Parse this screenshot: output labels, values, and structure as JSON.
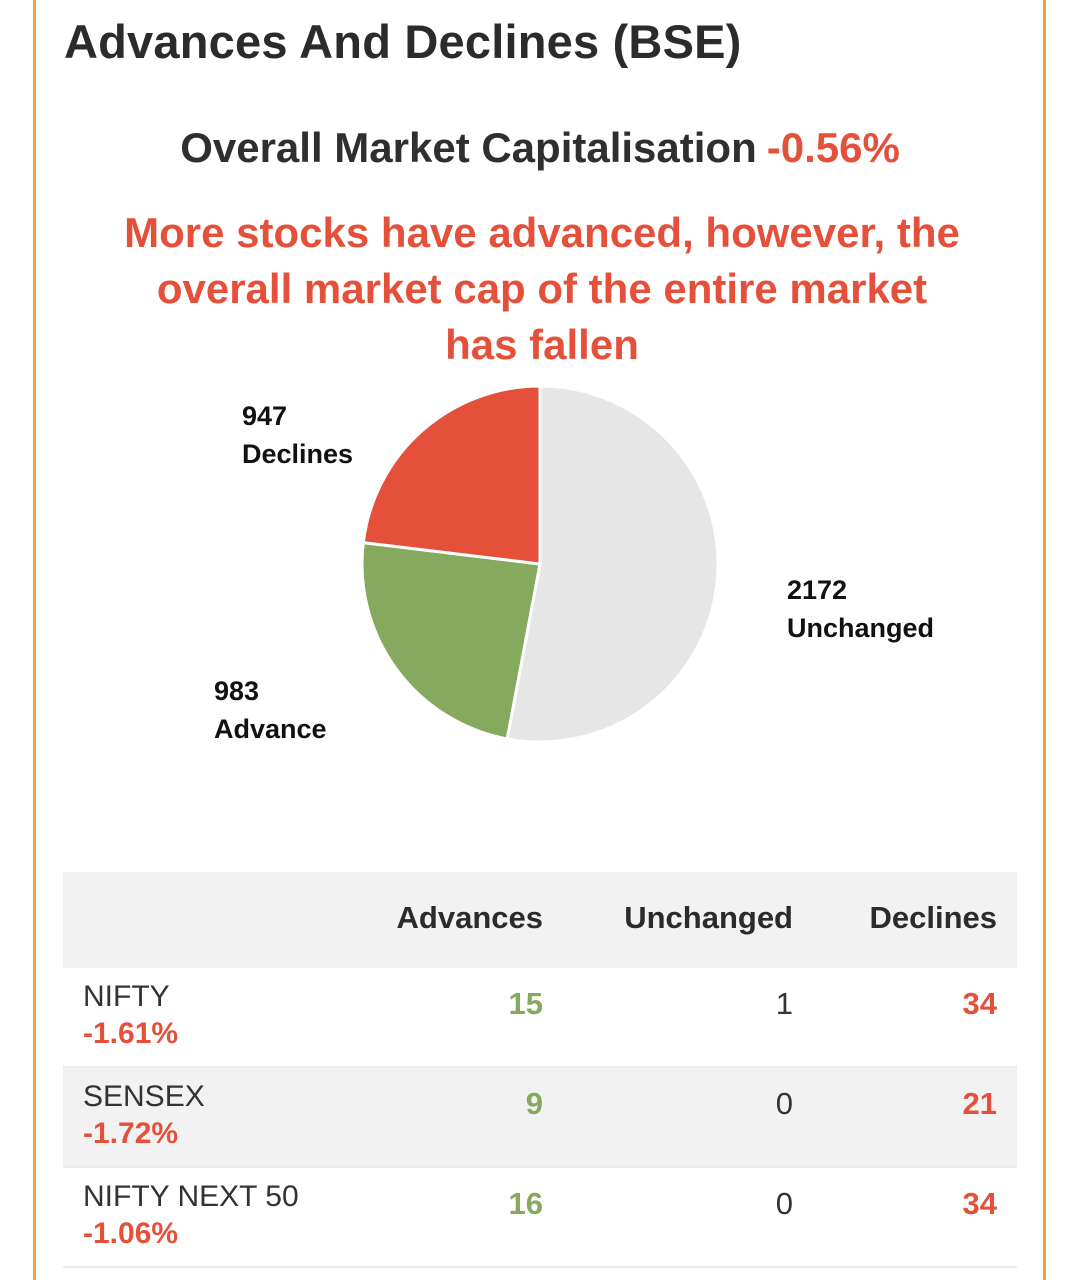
{
  "card": {
    "title": "Advances And Declines (BSE)"
  },
  "market_cap": {
    "label": "Overall Market Capitalisation",
    "value": "-0.56%"
  },
  "summary": {
    "message": "More stocks have advanced, however, the overall market cap of the entire market has fallen"
  },
  "colors": {
    "accent_border": "#f0a23c",
    "negative": "#e5503b",
    "positive": "#85a95d",
    "neutral_slice": "#e6e6e6",
    "header_bg": "#f2f2f2"
  },
  "chart_data": {
    "type": "pie",
    "slices": [
      {
        "name": "Unchanged",
        "value": 2172,
        "color": "#e6e6e6"
      },
      {
        "name": "Advance",
        "value": 983,
        "color": "#85a95d"
      },
      {
        "name": "Declines",
        "value": 947,
        "color": "#e5503b"
      }
    ],
    "labels": {
      "declines": {
        "value": "947",
        "name": "Declines"
      },
      "unchanged": {
        "value": "2172",
        "name": "Unchanged"
      },
      "advance": {
        "value": "983",
        "name": "Advance"
      }
    }
  },
  "table": {
    "headers": {
      "advances": "Advances",
      "unchanged": "Unchanged",
      "declines": "Declines"
    },
    "rows": [
      {
        "name": "NIFTY",
        "change": "-1.61%",
        "advances": "15",
        "unchanged": "1",
        "declines": "34"
      },
      {
        "name": "SENSEX",
        "change": "-1.72%",
        "advances": "9",
        "unchanged": "0",
        "declines": "21"
      },
      {
        "name": "NIFTY NEXT 50",
        "change": "-1.06%",
        "advances": "16",
        "unchanged": "0",
        "declines": "34"
      }
    ]
  }
}
